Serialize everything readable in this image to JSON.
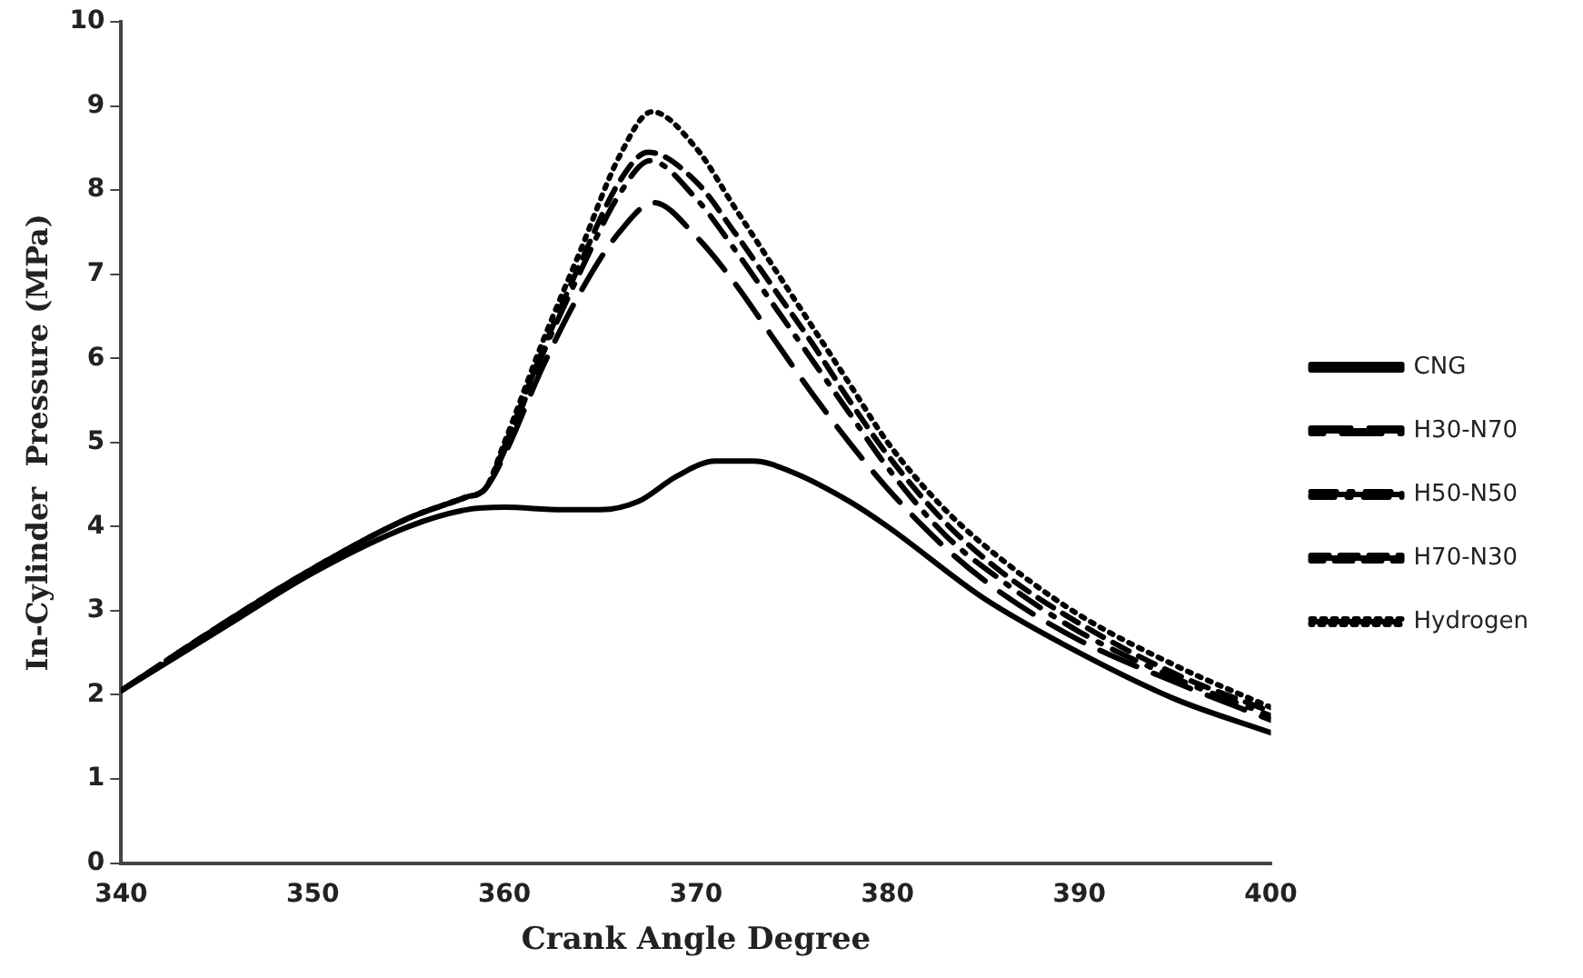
{
  "chart_data": {
    "type": "line",
    "xlabel": "Crank Angle Degree",
    "ylabel": "In-Cylinder  Pressure (MPa)",
    "xlim": [
      340,
      400
    ],
    "xticks": [
      340,
      350,
      360,
      370,
      380,
      390,
      400
    ],
    "ylim": [
      0,
      10
    ],
    "yticks": [
      0,
      1,
      2,
      3,
      4,
      5,
      6,
      7,
      8,
      9,
      10
    ],
    "grid": false,
    "legend": "right",
    "marker": "none",
    "series": [
      {
        "name": "CNG",
        "color": "#000000",
        "line_style": "solid",
        "x": [
          340,
          345,
          350,
          355,
          358,
          360,
          363,
          365,
          367,
          369,
          371,
          373,
          375,
          378,
          380,
          385,
          390,
          395,
          400
        ],
        "values": [
          2.05,
          2.75,
          3.45,
          4.0,
          4.2,
          4.23,
          4.2,
          4.2,
          4.3,
          4.6,
          4.78,
          4.78,
          4.65,
          4.3,
          4.0,
          3.15,
          2.5,
          1.95,
          1.55
        ]
      },
      {
        "name": "H30-N70",
        "color": "#000000",
        "line_style": "longdash",
        "x": [
          340,
          345,
          350,
          355,
          358,
          359,
          360,
          362,
          364,
          366,
          367.8,
          370,
          372,
          374,
          376,
          378,
          380,
          383,
          386,
          390,
          395,
          400
        ],
        "values": [
          2.05,
          2.8,
          3.5,
          4.1,
          4.35,
          4.45,
          4.85,
          5.9,
          6.8,
          7.5,
          7.85,
          7.45,
          6.9,
          6.25,
          5.6,
          5.0,
          4.45,
          3.75,
          3.2,
          2.65,
          2.15,
          1.7
        ]
      },
      {
        "name": "H50-N50",
        "color": "#000000",
        "line_style": "dashdot",
        "x": [
          340,
          345,
          350,
          355,
          358,
          359,
          360,
          362,
          364,
          366,
          367.6,
          370,
          372,
          374,
          376,
          378,
          380,
          383,
          386,
          390,
          395,
          400
        ],
        "values": [
          2.05,
          2.8,
          3.5,
          4.1,
          4.35,
          4.45,
          4.9,
          6.05,
          7.05,
          7.95,
          8.35,
          7.9,
          7.3,
          6.65,
          6.0,
          5.35,
          4.7,
          3.9,
          3.35,
          2.75,
          2.2,
          1.75
        ]
      },
      {
        "name": "H70-N30",
        "color": "#000000",
        "line_style": "dashed",
        "x": [
          340,
          345,
          350,
          355,
          358,
          359,
          360,
          362,
          364,
          366,
          367.5,
          370,
          372,
          374,
          376,
          378,
          380,
          383,
          386,
          390,
          395,
          400
        ],
        "values": [
          2.05,
          2.8,
          3.5,
          4.1,
          4.35,
          4.45,
          4.95,
          6.1,
          7.15,
          8.1,
          8.45,
          8.1,
          7.5,
          6.85,
          6.2,
          5.5,
          4.85,
          4.05,
          3.45,
          2.85,
          2.25,
          1.8
        ]
      },
      {
        "name": "Hydrogen",
        "color": "#000000",
        "line_style": "dotted",
        "x": [
          340,
          345,
          350,
          355,
          358,
          359,
          360,
          362,
          364,
          366,
          367.7,
          370,
          372,
          374,
          376,
          378,
          380,
          383,
          386,
          390,
          395,
          400
        ],
        "values": [
          2.05,
          2.8,
          3.5,
          4.1,
          4.35,
          4.45,
          5.0,
          6.2,
          7.3,
          8.4,
          8.93,
          8.5,
          7.8,
          7.1,
          6.4,
          5.7,
          5.0,
          4.2,
          3.6,
          2.95,
          2.35,
          1.85
        ]
      }
    ]
  }
}
